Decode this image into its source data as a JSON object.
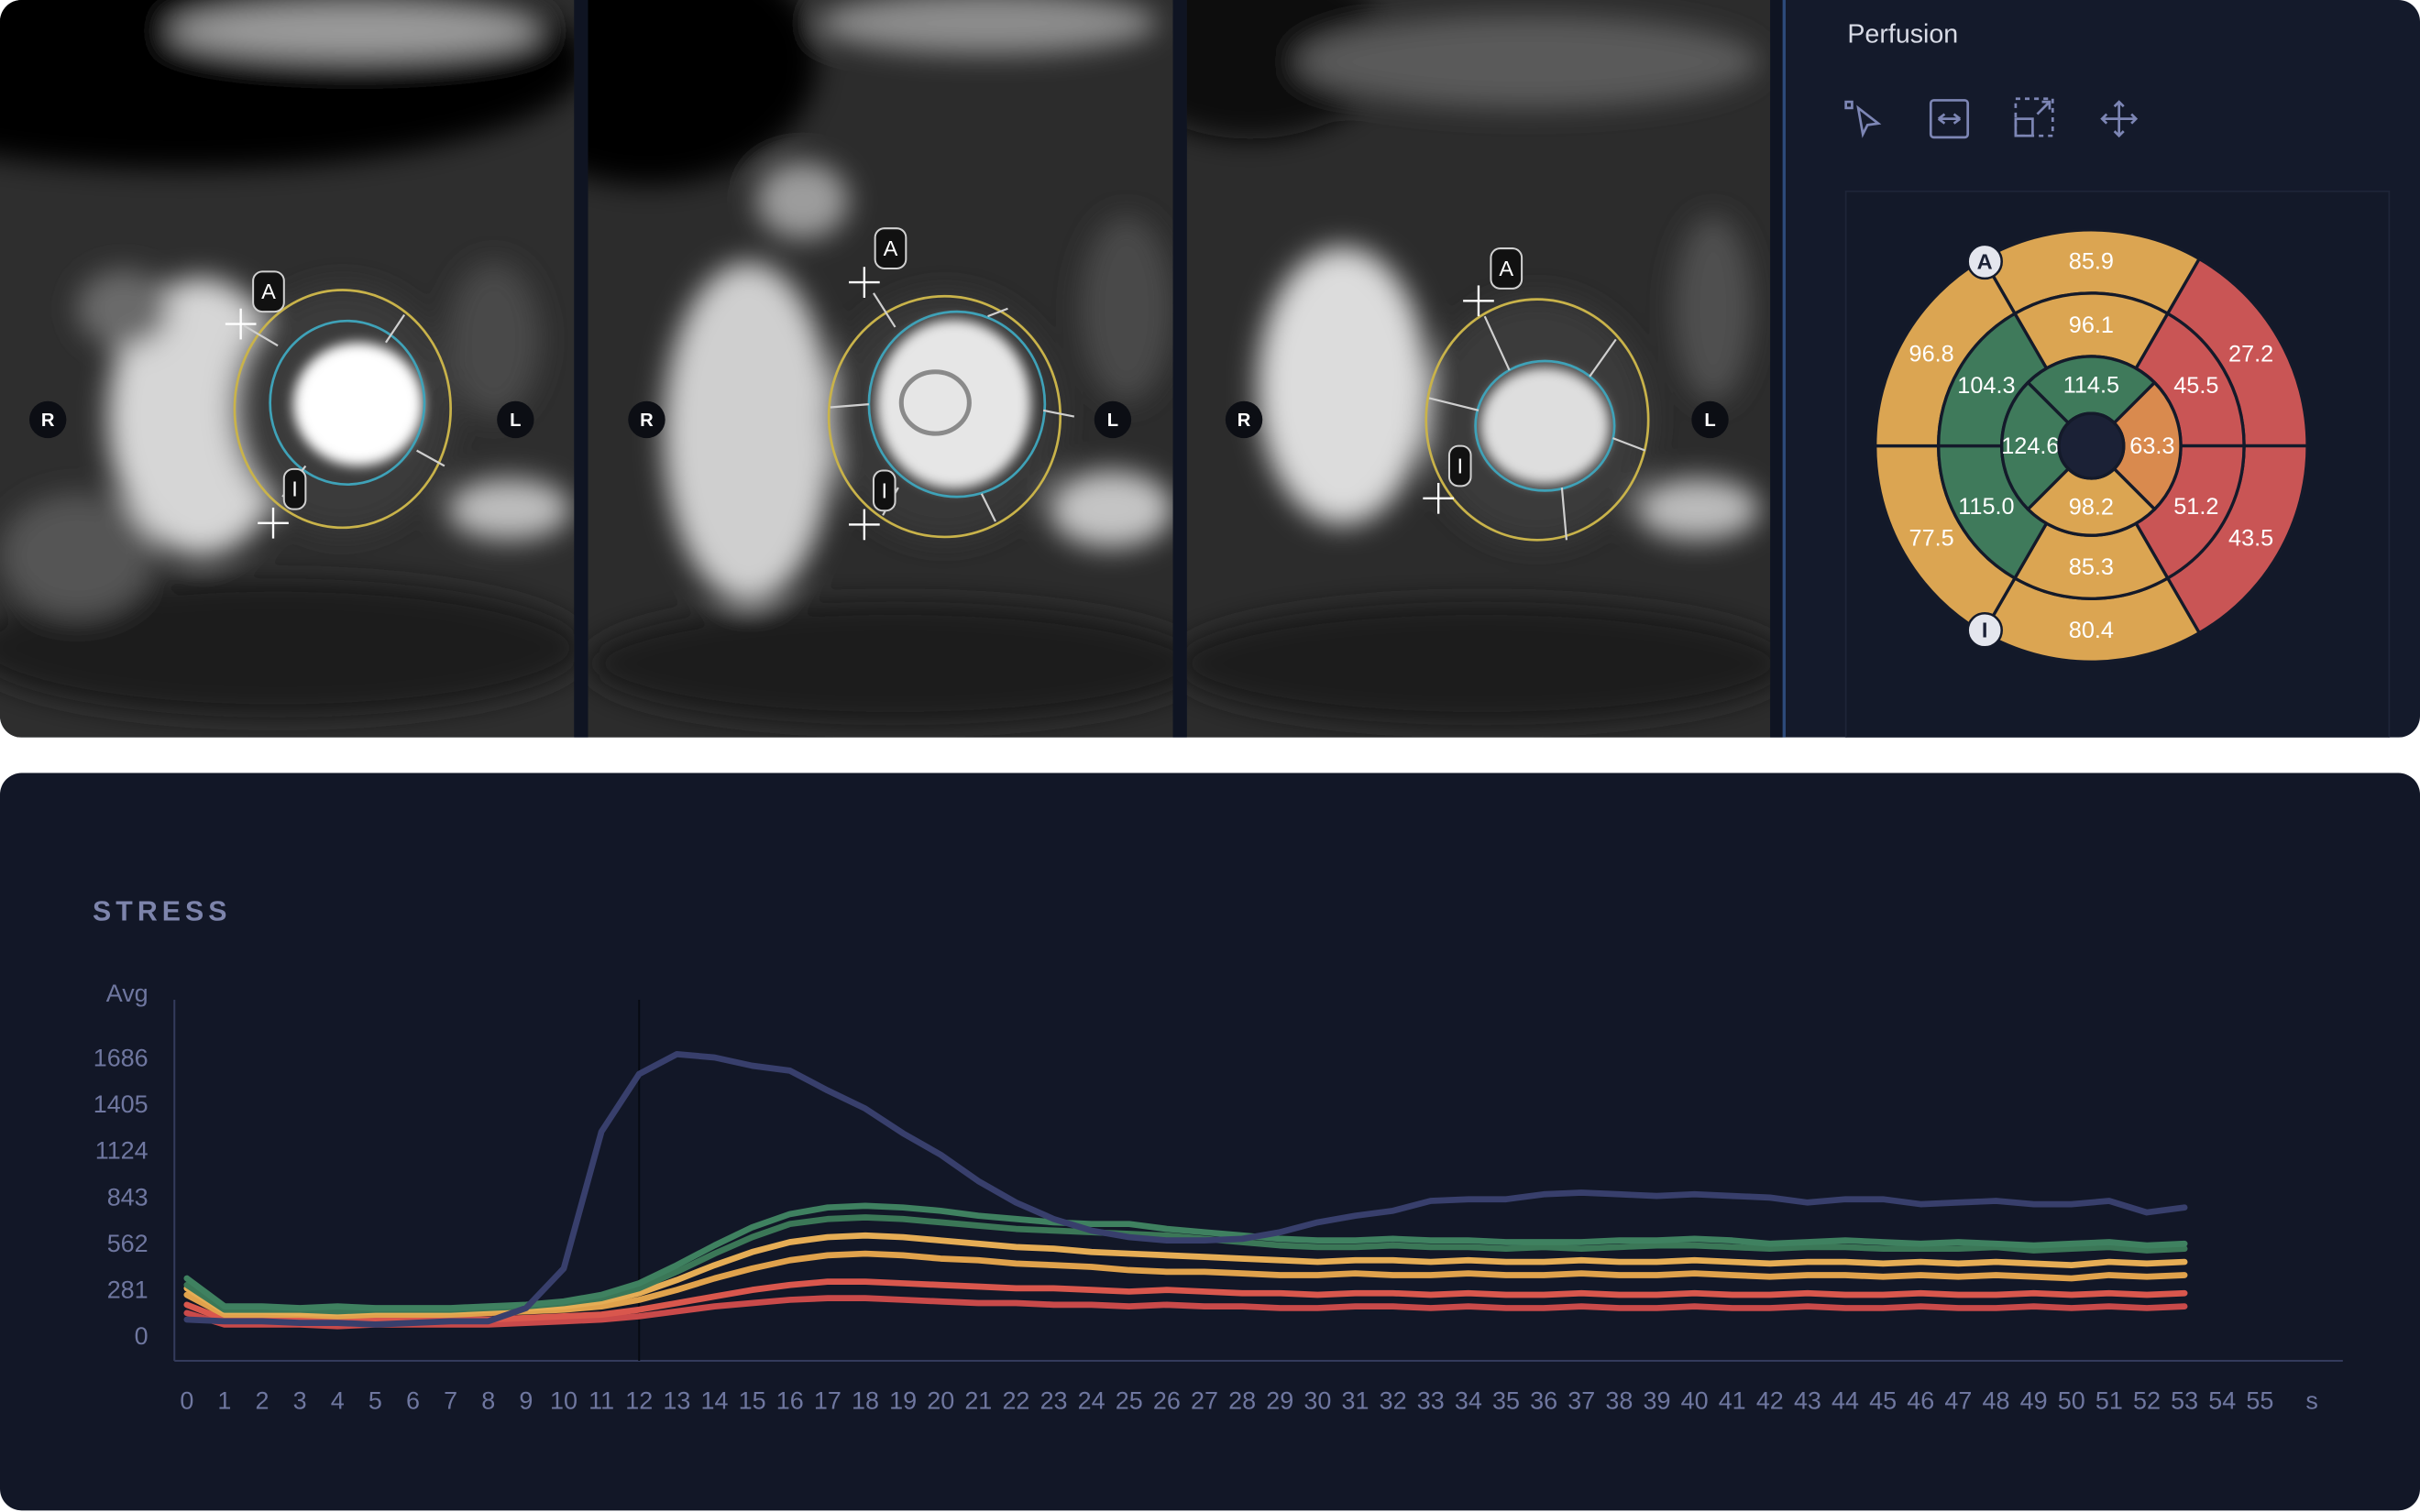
{
  "viewers": [
    {
      "right": "R",
      "left": "L",
      "anterior": "A",
      "inferior": "I"
    },
    {
      "right": "R",
      "left": "L",
      "anterior": "A",
      "inferior": "I"
    },
    {
      "right": "R",
      "left": "L",
      "anterior": "A",
      "inferior": "I"
    }
  ],
  "perfusion_panel": {
    "title": "Perfusion",
    "bullseye": {
      "markers": {
        "anterior": "A",
        "inferior": "I"
      },
      "basal": [
        {
          "label": "85.9",
          "color": "#dba552"
        },
        {
          "label": "27.2",
          "color": "#c95555"
        },
        {
          "label": "43.5",
          "color": "#c95555"
        },
        {
          "label": "80.4",
          "color": "#dba552"
        },
        {
          "label": "77.5",
          "color": "#dba552"
        },
        {
          "label": "96.8",
          "color": "#dba552"
        }
      ],
      "mid": [
        {
          "label": "96.1",
          "color": "#dba552"
        },
        {
          "label": "45.5",
          "color": "#c95555"
        },
        {
          "label": "51.2",
          "color": "#c95555"
        },
        {
          "label": "85.3",
          "color": "#dba552"
        },
        {
          "label": "115.0",
          "color": "#3f7a5b"
        },
        {
          "label": "104.3",
          "color": "#3f7a5b"
        }
      ],
      "apical": [
        {
          "label": "114.5",
          "color": "#3f7a5b"
        },
        {
          "label": "63.3",
          "color": "#d98a4e"
        },
        {
          "label": "98.2",
          "color": "#dba552"
        },
        {
          "label": "124.6",
          "color": "#3f7a5b"
        }
      ]
    }
  },
  "chart_data": {
    "type": "line",
    "title": "STRESS",
    "y_label": "Avg",
    "x_unit": "s",
    "xlim": [
      -0.33,
      57.2
    ],
    "ylim": [
      -140,
      2050
    ],
    "xticks": [
      0,
      1,
      2,
      3,
      4,
      5,
      6,
      7,
      8,
      9,
      10,
      11,
      12,
      13,
      14,
      15,
      16,
      17,
      18,
      19,
      20,
      21,
      22,
      23,
      24,
      25,
      26,
      27,
      28,
      29,
      30,
      31,
      32,
      33,
      34,
      35,
      36,
      37,
      38,
      39,
      40,
      41,
      42,
      43,
      44,
      45,
      46,
      47,
      48,
      49,
      50,
      51,
      52,
      53,
      54,
      55
    ],
    "yticks": [
      0,
      281,
      562,
      843,
      1124,
      1405,
      1686
    ],
    "marker_x": 12,
    "x": [
      0,
      1,
      2,
      3,
      4,
      5,
      6,
      7,
      8,
      9,
      10,
      11,
      12,
      13,
      14,
      15,
      16,
      17,
      18,
      19,
      20,
      21,
      22,
      23,
      24,
      25,
      26,
      27,
      28,
      29,
      30,
      31,
      32,
      33,
      34,
      35,
      36,
      37,
      38,
      39,
      40,
      41,
      42,
      43,
      44,
      45,
      46,
      47,
      48,
      49,
      50,
      51,
      52,
      53
    ],
    "series": [
      {
        "color": "#c94a4a",
        "values": [
          150,
          80,
          80,
          80,
          70,
          80,
          80,
          80,
          80,
          90,
          100,
          110,
          130,
          160,
          190,
          210,
          230,
          240,
          240,
          230,
          220,
          210,
          210,
          200,
          200,
          190,
          200,
          190,
          190,
          180,
          180,
          190,
          190,
          180,
          190,
          180,
          180,
          190,
          180,
          180,
          190,
          180,
          180,
          190,
          180,
          180,
          190,
          180,
          180,
          190,
          180,
          190,
          180,
          190
        ]
      },
      {
        "color": "#d9574d",
        "values": [
          200,
          110,
          110,
          110,
          100,
          110,
          110,
          110,
          110,
          120,
          130,
          140,
          170,
          210,
          250,
          290,
          320,
          340,
          340,
          330,
          320,
          310,
          300,
          300,
          290,
          280,
          290,
          280,
          270,
          270,
          260,
          270,
          270,
          260,
          270,
          260,
          260,
          270,
          260,
          260,
          270,
          260,
          260,
          270,
          260,
          260,
          270,
          260,
          260,
          270,
          260,
          270,
          260,
          270
        ]
      },
      {
        "color": "#e0a24c",
        "values": [
          260,
          140,
          140,
          140,
          130,
          140,
          140,
          140,
          150,
          160,
          170,
          190,
          230,
          290,
          360,
          420,
          470,
          500,
          510,
          500,
          480,
          470,
          450,
          440,
          430,
          410,
          400,
          400,
          390,
          380,
          380,
          390,
          380,
          380,
          390,
          380,
          380,
          390,
          380,
          380,
          390,
          380,
          370,
          380,
          380,
          370,
          380,
          370,
          380,
          370,
          360,
          380,
          370,
          380
        ]
      },
      {
        "color": "#e6ad55",
        "values": [
          300,
          160,
          160,
          150,
          150,
          160,
          160,
          160,
          170,
          180,
          190,
          220,
          270,
          350,
          440,
          520,
          580,
          610,
          620,
          610,
          590,
          570,
          550,
          540,
          520,
          510,
          500,
          490,
          480,
          470,
          460,
          470,
          470,
          460,
          470,
          460,
          460,
          470,
          460,
          460,
          470,
          460,
          450,
          460,
          460,
          450,
          460,
          450,
          460,
          450,
          440,
          460,
          450,
          460
        ]
      },
      {
        "color": "#3b7757",
        "values": [
          320,
          170,
          170,
          170,
          160,
          170,
          170,
          170,
          180,
          190,
          210,
          240,
          300,
          400,
          510,
          610,
          690,
          720,
          730,
          720,
          700,
          680,
          660,
          650,
          640,
          630,
          620,
          600,
          580,
          560,
          550,
          550,
          560,
          550,
          550,
          540,
          550,
          540,
          550,
          560,
          560,
          550,
          540,
          550,
          550,
          540,
          540,
          540,
          550,
          530,
          540,
          550,
          530,
          540
        ]
      },
      {
        "color": "#3f8160",
        "values": [
          360,
          190,
          190,
          180,
          190,
          180,
          180,
          180,
          190,
          200,
          220,
          260,
          330,
          440,
          560,
          670,
          750,
          790,
          800,
          790,
          770,
          740,
          720,
          700,
          690,
          690,
          660,
          640,
          620,
          600,
          590,
          590,
          600,
          590,
          590,
          580,
          580,
          580,
          590,
          590,
          600,
          590,
          570,
          580,
          590,
          580,
          570,
          580,
          570,
          560,
          570,
          580,
          560,
          570
        ]
      },
      {
        "color": "#383f6c",
        "values": [
          110,
          100,
          100,
          90,
          90,
          80,
          90,
          100,
          100,
          180,
          420,
          1250,
          1600,
          1720,
          1700,
          1650,
          1620,
          1500,
          1390,
          1240,
          1110,
          950,
          820,
          720,
          650,
          610,
          590,
          590,
          600,
          640,
          700,
          740,
          770,
          830,
          840,
          840,
          870,
          880,
          870,
          860,
          870,
          860,
          850,
          820,
          840,
          840,
          810,
          820,
          830,
          810,
          810,
          830,
          760,
          790
        ]
      }
    ]
  }
}
